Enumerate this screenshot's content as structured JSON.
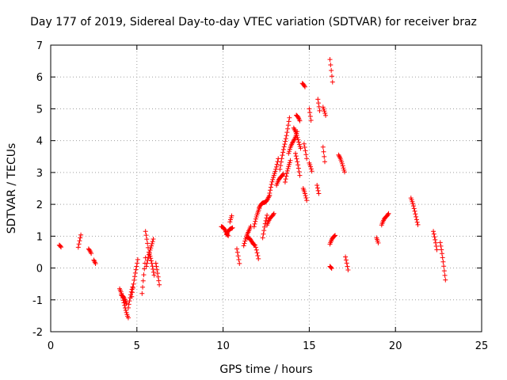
{
  "chart_data": {
    "type": "scatter",
    "title": "Day 177 of 2019, Sidereal Day-to-day VTEC variation (SDTVAR) for receiver braz",
    "xlabel": "GPS time / hours",
    "ylabel": "SDTVAR / TECUs",
    "xlim": [
      0,
      25
    ],
    "ylim": [
      -2,
      7
    ],
    "xticks": [
      0,
      5,
      10,
      15,
      20,
      25
    ],
    "yticks": [
      -2,
      -1,
      0,
      1,
      2,
      3,
      4,
      5,
      6,
      7
    ],
    "grid": true,
    "marker": "plus",
    "color": "#ff0000",
    "series": [
      {
        "name": "SDTVAR",
        "segments": [
          {
            "x": [
              0.5,
              0.6
            ],
            "y": [
              0.72,
              0.62
            ]
          },
          {
            "x": [
              1.6,
              1.75
            ],
            "y": [
              0.65,
              1.0
            ]
          },
          {
            "x": [
              2.2,
              2.35
            ],
            "y": [
              0.6,
              0.42
            ]
          },
          {
            "x": [
              2.5,
              2.6
            ],
            "y": [
              0.25,
              0.1
            ]
          },
          {
            "x": [
              4.0,
              4.5
            ],
            "y": [
              -0.65,
              -1.55
            ]
          },
          {
            "x": [
              4.1,
              4.4
            ],
            "y": [
              -0.85,
              -1.1
            ]
          },
          {
            "x": [
              4.5,
              4.75
            ],
            "y": [
              -1.25,
              -0.6
            ]
          },
          {
            "x": [
              4.7,
              5.05
            ],
            "y": [
              -0.9,
              0.3
            ]
          },
          {
            "x": [
              5.3,
              5.5
            ],
            "y": [
              -0.8,
              0.3
            ]
          },
          {
            "x": [
              5.5,
              5.65
            ],
            "y": [
              1.15,
              0.6
            ]
          },
          {
            "x": [
              5.55,
              5.95
            ],
            "y": [
              0.05,
              0.95
            ]
          },
          {
            "x": [
              5.7,
              6.0
            ],
            "y": [
              0.5,
              -0.2
            ]
          },
          {
            "x": [
              6.1,
              6.3
            ],
            "y": [
              0.15,
              -0.55
            ]
          },
          {
            "x": [
              9.9,
              10.3
            ],
            "y": [
              1.3,
              1.05
            ]
          },
          {
            "x": [
              10.2,
              10.55
            ],
            "y": [
              1.05,
              1.3
            ]
          },
          {
            "x": [
              10.4,
              10.5
            ],
            "y": [
              1.45,
              1.6
            ]
          },
          {
            "x": [
              10.8,
              10.95
            ],
            "y": [
              0.6,
              0.1
            ]
          },
          {
            "x": [
              11.2,
              11.6
            ],
            "y": [
              0.7,
              1.35
            ]
          },
          {
            "x": [
              11.4,
              11.85
            ],
            "y": [
              0.95,
              0.75
            ]
          },
          {
            "x": [
              11.8,
              12.1
            ],
            "y": [
              1.3,
              1.9
            ]
          },
          {
            "x": [
              11.9,
              12.05
            ],
            "y": [
              0.65,
              0.25
            ]
          },
          {
            "x": [
              12.1,
              12.7
            ],
            "y": [
              1.9,
              2.25
            ]
          },
          {
            "x": [
              12.3,
              12.55
            ],
            "y": [
              0.95,
              1.65
            ]
          },
          {
            "x": [
              12.55,
              12.95
            ],
            "y": [
              1.35,
              1.75
            ]
          },
          {
            "x": [
              12.7,
              13.2
            ],
            "y": [
              2.35,
              3.45
            ]
          },
          {
            "x": [
              13.1,
              13.5
            ],
            "y": [
              2.6,
              3.0
            ]
          },
          {
            "x": [
              13.3,
              13.85
            ],
            "y": [
              3.1,
              4.7
            ]
          },
          {
            "x": [
              13.6,
              13.9
            ],
            "y": [
              2.7,
              3.4
            ]
          },
          {
            "x": [
              13.8,
              14.3
            ],
            "y": [
              3.6,
              4.3
            ]
          },
          {
            "x": [
              14.1,
              14.5
            ],
            "y": [
              4.4,
              3.8
            ]
          },
          {
            "x": [
              14.2,
              14.45
            ],
            "y": [
              3.6,
              2.9
            ]
          },
          {
            "x": [
              14.25,
              14.45
            ],
            "y": [
              4.8,
              4.6
            ]
          },
          {
            "x": [
              14.6,
              14.75
            ],
            "y": [
              5.8,
              5.65
            ]
          },
          {
            "x": [
              14.7,
              14.85
            ],
            "y": [
              3.9,
              3.4
            ]
          },
          {
            "x": [
              14.65,
              14.85
            ],
            "y": [
              2.5,
              2.1
            ]
          },
          {
            "x": [
              15.0,
              15.1
            ],
            "y": [
              5.0,
              4.6
            ]
          },
          {
            "x": [
              15.0,
              15.15
            ],
            "y": [
              3.3,
              3.0
            ]
          },
          {
            "x": [
              15.5,
              15.6
            ],
            "y": [
              5.3,
              4.9
            ]
          },
          {
            "x": [
              15.45,
              15.55
            ],
            "y": [
              2.6,
              2.3
            ]
          },
          {
            "x": [
              15.8,
              15.95
            ],
            "y": [
              5.05,
              4.75
            ]
          },
          {
            "x": [
              15.8,
              15.9
            ],
            "y": [
              3.8,
              3.3
            ]
          },
          {
            "x": [
              16.2,
              16.35
            ],
            "y": [
              6.55,
              5.8
            ]
          },
          {
            "x": [
              16.2,
              16.5
            ],
            "y": [
              0.75,
              1.05
            ]
          },
          {
            "x": [
              16.2,
              16.3
            ],
            "y": [
              0.05,
              -0.05
            ]
          },
          {
            "x": [
              16.7,
              17.05
            ],
            "y": [
              3.55,
              3.05
            ]
          },
          {
            "x": [
              17.1,
              17.25
            ],
            "y": [
              0.35,
              -0.1
            ]
          },
          {
            "x": [
              18.9,
              19.0
            ],
            "y": [
              0.95,
              0.75
            ]
          },
          {
            "x": [
              19.2,
              19.6
            ],
            "y": [
              1.35,
              1.75
            ]
          },
          {
            "x": [
              20.9,
              21.3
            ],
            "y": [
              2.2,
              1.4
            ]
          },
          {
            "x": [
              22.2,
              22.4
            ],
            "y": [
              1.15,
              0.55
            ]
          },
          {
            "x": [
              22.6,
              22.9
            ],
            "y": [
              0.8,
              -0.35
            ]
          }
        ]
      }
    ]
  }
}
